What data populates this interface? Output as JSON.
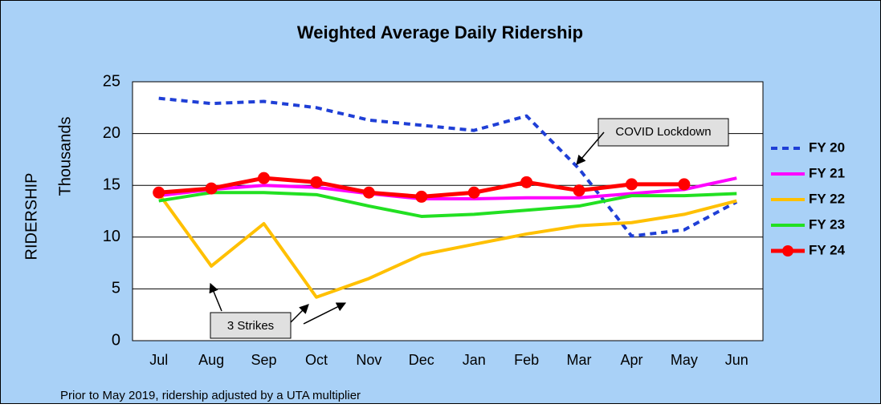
{
  "chart_data": {
    "type": "line",
    "title": "Weighted Average Daily Ridership",
    "y_label": "RIDERSHIP",
    "y_unit_label": "Thousands",
    "categories": [
      "Jul",
      "Aug",
      "Sep",
      "Oct",
      "Nov",
      "Dec",
      "Jan",
      "Feb",
      "Mar",
      "Apr",
      "May",
      "Jun"
    ],
    "series": [
      {
        "name": "FY 20",
        "color": "#1f3fd6",
        "style": "dashed",
        "values": [
          23.4,
          22.9,
          23.1,
          22.5,
          21.3,
          20.8,
          20.3,
          21.7,
          16.6,
          10.1,
          10.7,
          13.4
        ]
      },
      {
        "name": "FY 21",
        "color": "#ff00ff",
        "style": "solid",
        "values": [
          14.0,
          14.6,
          15.0,
          14.8,
          14.2,
          13.7,
          13.7,
          13.8,
          13.8,
          14.2,
          14.6,
          15.7
        ]
      },
      {
        "name": "FY 22",
        "color": "#ffc000",
        "style": "solid",
        "values": [
          14.2,
          7.2,
          11.3,
          4.2,
          6.0,
          8.3,
          9.3,
          10.3,
          11.1,
          11.4,
          12.2,
          13.5
        ]
      },
      {
        "name": "FY 23",
        "color": "#22e022",
        "style": "solid",
        "values": [
          13.5,
          14.3,
          14.3,
          14.1,
          13.0,
          12.0,
          12.2,
          12.6,
          13.0,
          14.0,
          14.0,
          14.2
        ]
      },
      {
        "name": "FY 24",
        "color": "#ff0000",
        "style": "solid",
        "marker": "circle",
        "values": [
          14.3,
          14.7,
          15.7,
          15.3,
          14.3,
          13.9,
          14.3,
          15.3,
          14.5,
          15.1,
          15.1,
          null
        ]
      }
    ],
    "ylim": [
      0,
      25
    ],
    "yticks": [
      0,
      5,
      10,
      15,
      20,
      25
    ],
    "grid": true,
    "legend": "right",
    "annotations": [
      "COVID Lockdown",
      "3 Strikes"
    ],
    "footnote": "Prior to May 2019, ridership adjusted by a UTA multiplier"
  }
}
